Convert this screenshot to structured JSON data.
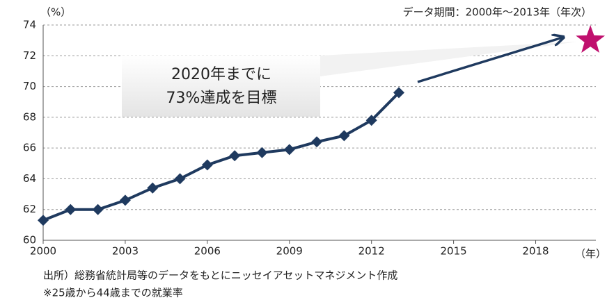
{
  "chart_data": {
    "type": "line",
    "y_unit": "（%）",
    "x_unit": "（年）",
    "note": "データ期間：2000年～2013年（年次）",
    "annotation": [
      "2020年までに",
      "73%達成を目標"
    ],
    "footnotes": [
      "出所）総務省統計局等のデータをもとにニッセイアセットマネジメント作成",
      "※25歳から44歳までの就業率"
    ],
    "x": [
      2000,
      2001,
      2002,
      2003,
      2004,
      2005,
      2006,
      2007,
      2008,
      2009,
      2010,
      2011,
      2012,
      2013
    ],
    "series": [
      {
        "color": "#1f3a5f",
        "values": [
          61.3,
          62.0,
          62.0,
          62.6,
          63.4,
          64.0,
          64.9,
          65.5,
          65.7,
          65.9,
          66.4,
          66.8,
          67.8,
          69.6
        ]
      }
    ],
    "target": {
      "x": 2020,
      "value": 73,
      "color": "#c0106e"
    },
    "xlim": [
      2000,
      2020.2
    ],
    "xticks": [
      2000,
      2003,
      2006,
      2009,
      2012,
      2015,
      2018
    ],
    "ylim": [
      60,
      74
    ],
    "yticks": [
      60,
      62,
      64,
      66,
      68,
      70,
      72,
      74
    ],
    "grid": true
  }
}
